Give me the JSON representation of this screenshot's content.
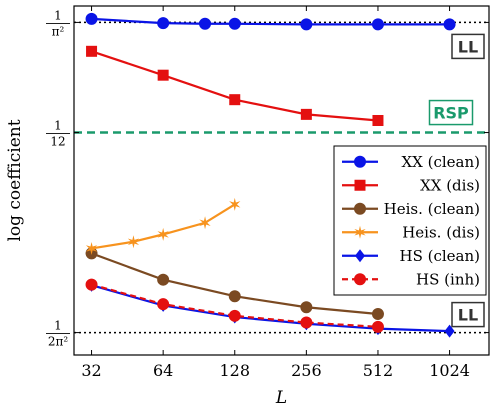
{
  "chart_data": {
    "type": "line",
    "xlabel": "L",
    "ylabel": "log coefficient",
    "x_scale": "log2",
    "xlim": [
      27,
      1500
    ],
    "ylim": [
      0.047,
      0.104
    ],
    "x_ticks": [
      32,
      64,
      128,
      256,
      512,
      1024
    ],
    "x_tick_labels": [
      "32",
      "64",
      "128",
      "256",
      "512",
      "1024"
    ],
    "y_ticks": [
      {
        "value": 0.10132,
        "num": "1",
        "den": "π²"
      },
      {
        "value": 0.08333,
        "num": "1",
        "den": "12"
      },
      {
        "value": 0.05066,
        "num": "1",
        "den": "2π²"
      }
    ],
    "reference_lines": [
      {
        "y": 0.10132,
        "style": "dotted",
        "color": "#000000",
        "label": "LL"
      },
      {
        "y": 0.08333,
        "style": "dashed",
        "color": "#1a9a6c",
        "label": "RSP"
      },
      {
        "y": 0.05066,
        "style": "dotted",
        "color": "#000000",
        "label": "LL"
      }
    ],
    "series": [
      {
        "name": "XX (clean)",
        "color": "#0a14e6",
        "marker": "circle",
        "line": "solid",
        "x": [
          32,
          64,
          96,
          128,
          256,
          512,
          1024
        ],
        "y": [
          0.1019,
          0.1012,
          0.1011,
          0.1011,
          0.101,
          0.101,
          0.101
        ]
      },
      {
        "name": "XX (dis)",
        "color": "#e41010",
        "marker": "square",
        "line": "solid",
        "x": [
          32,
          64,
          128,
          256,
          512
        ],
        "y": [
          0.0966,
          0.0927,
          0.0887,
          0.0863,
          0.0853
        ]
      },
      {
        "name": "Heis. (clean)",
        "color": "#7b4a22",
        "marker": "circle",
        "line": "solid",
        "x": [
          32,
          64,
          128,
          256,
          512
        ],
        "y": [
          0.0636,
          0.0593,
          0.0566,
          0.0548,
          0.0537
        ]
      },
      {
        "name": "Heis. (dis)",
        "color": "#f7931e",
        "marker": "star",
        "line": "solid",
        "x": [
          32,
          48,
          64,
          96,
          128
        ],
        "y": [
          0.0644,
          0.0655,
          0.0667,
          0.0686,
          0.0716
        ]
      },
      {
        "name": "HS (clean)",
        "color": "#0a14e6",
        "marker": "diamond",
        "line": "solid",
        "x": [
          32,
          64,
          128,
          256,
          512,
          1024
        ],
        "y": [
          0.0584,
          0.0551,
          0.0532,
          0.0521,
          0.0513,
          0.0509
        ]
      },
      {
        "name": "HS (inh)",
        "color": "#e41010",
        "marker": "circle",
        "line": "dashed",
        "x": [
          32,
          64,
          128,
          256,
          512
        ],
        "y": [
          0.0585,
          0.0553,
          0.0534,
          0.0523,
          0.0516
        ]
      }
    ],
    "legend_position": "right"
  }
}
